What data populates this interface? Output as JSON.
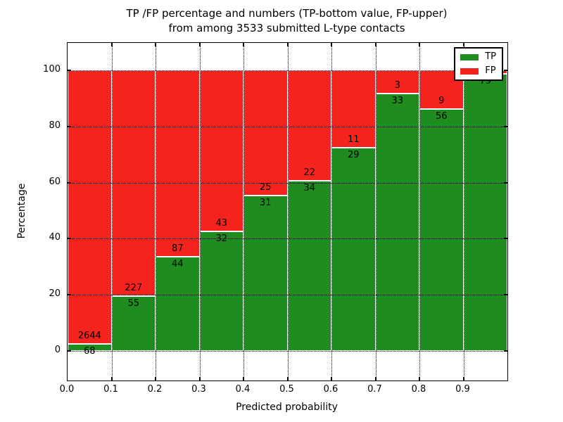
{
  "title": {
    "line1": "TP /FP percentage and numbers (TP-bottom value, FP-upper)",
    "line2": "from among 3533 submitted L-type contacts"
  },
  "axes": {
    "xlabel": "Predicted probability",
    "ylabel": "Percentage",
    "x_tick_labels": [
      "0.0",
      "0.1",
      "0.2",
      "0.3",
      "0.4",
      "0.5",
      "0.6",
      "0.7",
      "0.8",
      "0.9"
    ],
    "y_tick_labels": [
      "0",
      "20",
      "40",
      "60",
      "80",
      "100"
    ],
    "y_tick_values": [
      0,
      20,
      40,
      60,
      80,
      100
    ]
  },
  "colors": {
    "tp": "#1e8c1e",
    "fp": "#f5231e",
    "grid": "#000000",
    "frame": "#000000",
    "background": "#ffffff"
  },
  "legend": {
    "entries": [
      {
        "label": "TP",
        "color": "#1e8c1e"
      },
      {
        "label": "FP",
        "color": "#f5231e"
      }
    ],
    "position": "upper right"
  },
  "chart_data": {
    "type": "bar",
    "stacked": true,
    "normalized_to_percent": true,
    "title": "TP /FP percentage and numbers (TP-bottom value, FP-upper) from among 3533 submitted L-type contacts",
    "xlabel": "Predicted probability",
    "ylabel": "Percentage",
    "total_submitted": 3533,
    "bin_width": 0.1,
    "x_bin_starts": [
      0.0,
      0.1,
      0.2,
      0.3,
      0.4,
      0.5,
      0.6,
      0.7,
      0.8,
      0.9
    ],
    "xlim": [
      0.0,
      1.0
    ],
    "ylim": [
      0,
      100
    ],
    "grid": "dotted",
    "series": [
      {
        "name": "TP",
        "counts": [
          68,
          55,
          44,
          32,
          31,
          34,
          29,
          33,
          56,
          79
        ]
      },
      {
        "name": "FP",
        "counts": [
          2644,
          227,
          87,
          43,
          25,
          22,
          11,
          3,
          9,
          1
        ]
      }
    ],
    "bar_labels": {
      "tp": [
        "68",
        "55",
        "44",
        "32",
        "31",
        "34",
        "29",
        "33",
        "56",
        "79"
      ],
      "fp": [
        "2644",
        "227",
        "87",
        "43",
        "25",
        "22",
        "11",
        "3",
        "9",
        ""
      ]
    }
  }
}
